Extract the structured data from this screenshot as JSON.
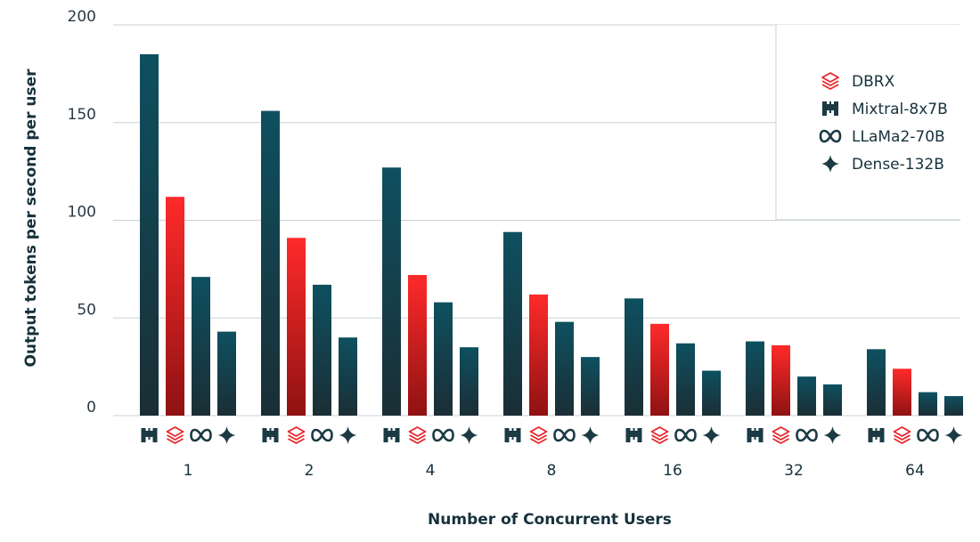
{
  "chart_data": {
    "type": "bar",
    "title": "",
    "xlabel": "Number of Concurrent Users",
    "ylabel": "Output tokens per second per user",
    "ylim": [
      0,
      200
    ],
    "yticks": [
      0,
      50,
      100,
      150,
      200
    ],
    "grid": true,
    "legend_position": "top-right",
    "categories": [
      "1",
      "2",
      "4",
      "8",
      "16",
      "32",
      "64"
    ],
    "series": [
      {
        "name": "Mixtral-8x7B",
        "icon": "mistral-icon",
        "color": "#0e4652",
        "values": [
          185,
          156,
          127,
          94,
          60,
          38,
          34
        ]
      },
      {
        "name": "DBRX",
        "icon": "databricks-icon",
        "color": "#ff1a1a",
        "values": [
          112,
          91,
          72,
          62,
          47,
          36,
          24
        ]
      },
      {
        "name": "LLaMa2-70B",
        "icon": "meta-icon",
        "color": "#0e4652",
        "values": [
          71,
          67,
          58,
          48,
          37,
          20,
          12
        ]
      },
      {
        "name": "Dense-132B",
        "icon": "sparkle-icon",
        "color": "#0e4652",
        "values": [
          43,
          40,
          35,
          30,
          23,
          16,
          10
        ]
      }
    ],
    "legend_order": [
      "DBRX",
      "Mixtral-8x7B",
      "LLaMa2-70B",
      "Dense-132B"
    ]
  }
}
